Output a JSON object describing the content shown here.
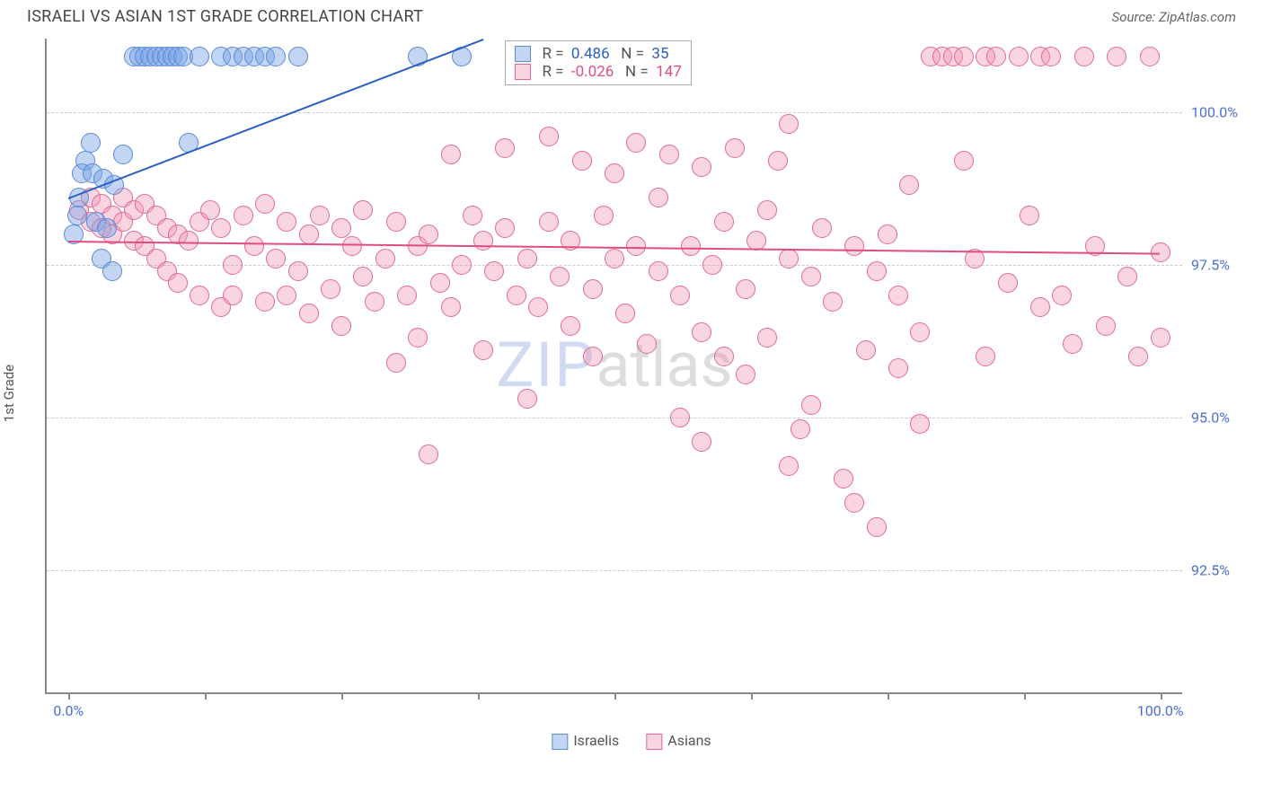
{
  "title": "ISRAELI VS ASIAN 1ST GRADE CORRELATION CHART",
  "source_label": "Source: ZipAtlas.com",
  "ylabel": "1st Grade",
  "watermark": {
    "part1": "ZIP",
    "part2": "atlas"
  },
  "chart": {
    "type": "scatter",
    "background_color": "#ffffff",
    "grid_color": "#cccccc",
    "axis_color": "#888888",
    "tick_label_color": "#4a6fd4",
    "x_range": [
      -2,
      102
    ],
    "y_range": [
      90.5,
      101.2
    ],
    "y_ticks": [
      92.5,
      95.0,
      97.5,
      100.0
    ],
    "y_tick_labels": [
      "92.5%",
      "95.0%",
      "97.5%",
      "100.0%"
    ],
    "x_ticks": [
      0,
      12.5,
      25,
      37.5,
      50,
      62.5,
      75,
      87.5,
      100
    ],
    "x_tick_labels": {
      "0": "0.0%",
      "100": "100.0%"
    },
    "marker_radius": 11,
    "marker_border_width": 1.5,
    "series": [
      {
        "name": "Israelis",
        "label": "Israelis",
        "color_fill": "rgba(120,165,230,0.45)",
        "color_stroke": "#5a8ad4",
        "line_color": "#2c5fc4",
        "line_width": 2.5,
        "R": "0.486",
        "N": "35",
        "regression": {
          "x1": 0,
          "y1": 98.6,
          "x2": 38,
          "y2": 101.2
        },
        "points": [
          [
            0.5,
            98.0
          ],
          [
            0.8,
            98.3
          ],
          [
            1.0,
            98.6
          ],
          [
            1.2,
            99.0
          ],
          [
            1.5,
            99.2
          ],
          [
            2.0,
            99.5
          ],
          [
            2.2,
            99.0
          ],
          [
            2.5,
            98.2
          ],
          [
            3.0,
            97.6
          ],
          [
            3.2,
            98.9
          ],
          [
            3.5,
            98.1
          ],
          [
            4.0,
            97.4
          ],
          [
            4.2,
            98.8
          ],
          [
            5.0,
            99.3
          ],
          [
            6.0,
            100.9
          ],
          [
            6.5,
            100.9
          ],
          [
            7.0,
            100.9
          ],
          [
            7.5,
            100.9
          ],
          [
            8.0,
            100.9
          ],
          [
            8.5,
            100.9
          ],
          [
            9.0,
            100.9
          ],
          [
            9.5,
            100.9
          ],
          [
            10.0,
            100.9
          ],
          [
            10.5,
            100.9
          ],
          [
            11.0,
            99.5
          ],
          [
            12.0,
            100.9
          ],
          [
            14.0,
            100.9
          ],
          [
            15.0,
            100.9
          ],
          [
            16.0,
            100.9
          ],
          [
            17.0,
            100.9
          ],
          [
            18.0,
            100.9
          ],
          [
            19.0,
            100.9
          ],
          [
            21.0,
            100.9
          ],
          [
            32.0,
            100.9
          ],
          [
            36.0,
            100.9
          ]
        ]
      },
      {
        "name": "Asians",
        "label": "Asians",
        "color_fill": "rgba(240,150,180,0.4)",
        "color_stroke": "#e06a95",
        "line_color": "#e04d7e",
        "line_width": 2.5,
        "R": "-0.026",
        "N": "147",
        "regression": {
          "x1": 0,
          "y1": 97.9,
          "x2": 100,
          "y2": 97.7
        },
        "points": [
          [
            1,
            98.4
          ],
          [
            2,
            98.6
          ],
          [
            2,
            98.2
          ],
          [
            3,
            98.5
          ],
          [
            3,
            98.1
          ],
          [
            4,
            98.3
          ],
          [
            4,
            98.0
          ],
          [
            5,
            98.6
          ],
          [
            5,
            98.2
          ],
          [
            6,
            98.4
          ],
          [
            6,
            97.9
          ],
          [
            7,
            98.5
          ],
          [
            7,
            97.8
          ],
          [
            8,
            97.6
          ],
          [
            8,
            98.3
          ],
          [
            9,
            97.4
          ],
          [
            9,
            98.1
          ],
          [
            10,
            97.2
          ],
          [
            10,
            98.0
          ],
          [
            11,
            97.9
          ],
          [
            12,
            97.0
          ],
          [
            12,
            98.2
          ],
          [
            13,
            98.4
          ],
          [
            14,
            96.8
          ],
          [
            14,
            98.1
          ],
          [
            15,
            97.5
          ],
          [
            15,
            97.0
          ],
          [
            16,
            98.3
          ],
          [
            17,
            97.8
          ],
          [
            18,
            96.9
          ],
          [
            18,
            98.5
          ],
          [
            19,
            97.6
          ],
          [
            20,
            97.0
          ],
          [
            20,
            98.2
          ],
          [
            21,
            97.4
          ],
          [
            22,
            96.7
          ],
          [
            22,
            98.0
          ],
          [
            23,
            98.3
          ],
          [
            24,
            97.1
          ],
          [
            25,
            98.1
          ],
          [
            25,
            96.5
          ],
          [
            26,
            97.8
          ],
          [
            27,
            97.3
          ],
          [
            27,
            98.4
          ],
          [
            28,
            96.9
          ],
          [
            29,
            97.6
          ],
          [
            30,
            95.9
          ],
          [
            30,
            98.2
          ],
          [
            31,
            97.0
          ],
          [
            32,
            97.8
          ],
          [
            32,
            96.3
          ],
          [
            33,
            98.0
          ],
          [
            33,
            94.4
          ],
          [
            34,
            97.2
          ],
          [
            35,
            96.8
          ],
          [
            35,
            99.3
          ],
          [
            36,
            97.5
          ],
          [
            37,
            98.3
          ],
          [
            38,
            96.1
          ],
          [
            38,
            97.9
          ],
          [
            39,
            97.4
          ],
          [
            40,
            98.1
          ],
          [
            40,
            99.4
          ],
          [
            41,
            97.0
          ],
          [
            42,
            95.3
          ],
          [
            42,
            97.6
          ],
          [
            43,
            96.8
          ],
          [
            44,
            98.2
          ],
          [
            44,
            99.6
          ],
          [
            45,
            97.3
          ],
          [
            46,
            96.5
          ],
          [
            46,
            97.9
          ],
          [
            47,
            99.2
          ],
          [
            48,
            97.1
          ],
          [
            48,
            96.0
          ],
          [
            49,
            98.3
          ],
          [
            50,
            97.6
          ],
          [
            50,
            99.0
          ],
          [
            51,
            96.7
          ],
          [
            52,
            97.8
          ],
          [
            52,
            99.5
          ],
          [
            53,
            96.2
          ],
          [
            54,
            97.4
          ],
          [
            54,
            98.6
          ],
          [
            55,
            99.3
          ],
          [
            56,
            97.0
          ],
          [
            56,
            95.0
          ],
          [
            57,
            97.8
          ],
          [
            58,
            96.4
          ],
          [
            58,
            99.1
          ],
          [
            59,
            97.5
          ],
          [
            60,
            96.0
          ],
          [
            60,
            98.2
          ],
          [
            61,
            99.4
          ],
          [
            62,
            97.1
          ],
          [
            62,
            95.7
          ],
          [
            63,
            97.9
          ],
          [
            64,
            96.3
          ],
          [
            64,
            98.4
          ],
          [
            65,
            99.2
          ],
          [
            66,
            97.6
          ],
          [
            66,
            94.2
          ],
          [
            67,
            94.8
          ],
          [
            68,
            95.2
          ],
          [
            68,
            97.3
          ],
          [
            69,
            98.1
          ],
          [
            70,
            96.9
          ],
          [
            71,
            94.0
          ],
          [
            72,
            97.8
          ],
          [
            72,
            93.6
          ],
          [
            73,
            96.1
          ],
          [
            74,
            97.4
          ],
          [
            74,
            93.2
          ],
          [
            75,
            98.0
          ],
          [
            76,
            95.8
          ],
          [
            76,
            97.0
          ],
          [
            77,
            98.8
          ],
          [
            78,
            94.9
          ],
          [
            78,
            96.4
          ],
          [
            79,
            100.9
          ],
          [
            80,
            100.9
          ],
          [
            81,
            100.9
          ],
          [
            82,
            100.9
          ],
          [
            82,
            99.2
          ],
          [
            83,
            97.6
          ],
          [
            84,
            96.0
          ],
          [
            84,
            100.9
          ],
          [
            85,
            100.9
          ],
          [
            86,
            97.2
          ],
          [
            87,
            100.9
          ],
          [
            88,
            98.3
          ],
          [
            89,
            96.8
          ],
          [
            89,
            100.9
          ],
          [
            90,
            100.9
          ],
          [
            91,
            97.0
          ],
          [
            92,
            96.2
          ],
          [
            93,
            100.9
          ],
          [
            94,
            97.8
          ],
          [
            95,
            96.5
          ],
          [
            96,
            100.9
          ],
          [
            97,
            97.3
          ],
          [
            98,
            96.0
          ],
          [
            99,
            100.9
          ],
          [
            100,
            97.7
          ],
          [
            100,
            96.3
          ],
          [
            66,
            99.8
          ],
          [
            58,
            94.6
          ]
        ]
      }
    ]
  },
  "bottom_legend": [
    {
      "label": "Israelis",
      "fill": "rgba(120,165,230,0.45)",
      "stroke": "#5a8ad4"
    },
    {
      "label": "Asians",
      "fill": "rgba(240,150,180,0.4)",
      "stroke": "#e06a95"
    }
  ]
}
